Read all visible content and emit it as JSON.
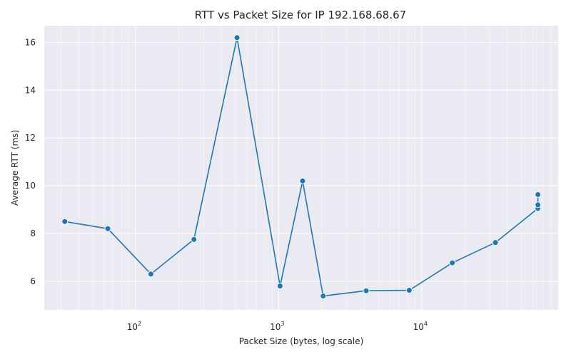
{
  "chart_data": {
    "type": "line",
    "title": "RTT vs Packet Size for IP 192.168.68.67",
    "xlabel": "Packet Size (bytes, log scale)",
    "ylabel": "Average RTT (ms)",
    "x_scale": "log",
    "xlim": [
      23,
      90000
    ],
    "ylim": [
      4.8,
      16.7
    ],
    "x_ticks": [
      {
        "base": "10",
        "exp": "2",
        "value": 100
      },
      {
        "base": "10",
        "exp": "3",
        "value": 1000
      },
      {
        "base": "10",
        "exp": "4",
        "value": 10000
      }
    ],
    "y_ticks": [
      6,
      8,
      10,
      12,
      14,
      16
    ],
    "grid": true,
    "series_color": "#1f77b4",
    "background": "#eaeaf2",
    "series": [
      {
        "x": [
          32,
          64,
          128,
          256,
          512,
          1024,
          1472,
          2048,
          4096,
          8192,
          16384,
          32768,
          65000,
          65000,
          65000
        ],
        "y": [
          8.5,
          8.2,
          6.3,
          7.75,
          16.2,
          5.8,
          10.2,
          5.38,
          5.6,
          5.62,
          6.77,
          7.62,
          9.05,
          9.2,
          9.63
        ]
      }
    ]
  }
}
